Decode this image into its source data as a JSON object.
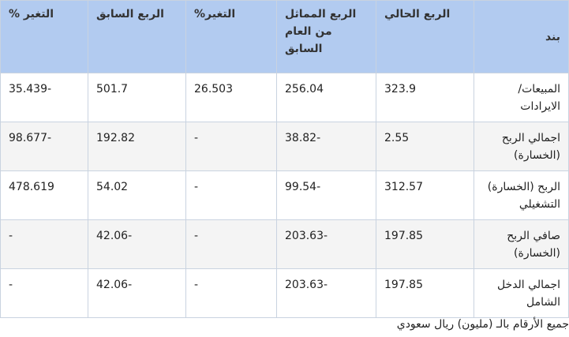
{
  "table": {
    "headers": {
      "item": "بند",
      "current_quarter": "الربع الحالي",
      "same_quarter_last_year": "الربع المماثل من العام السابق",
      "change_yoy": "التغير%",
      "previous_quarter": "الربع السابق",
      "change_qoq": "التغير %"
    },
    "rows": [
      {
        "item": "المبيعات/ الايرادات",
        "current": "323.9",
        "same_last_year": "256.04",
        "change_yoy": "26.503",
        "previous": "501.7",
        "change_qoq": "-35.439"
      },
      {
        "item": "اجمالي الربح (الخسارة)",
        "current": "2.55",
        "same_last_year": "-38.82",
        "change_yoy": "-",
        "previous": "192.82",
        "change_qoq": "-98.677"
      },
      {
        "item": "الربح (الخسارة) التشغيلي",
        "current": "312.57",
        "same_last_year": "-99.54",
        "change_yoy": "-",
        "previous": "54.02",
        "change_qoq": "478.619"
      },
      {
        "item": "صافي الربح (الخسارة)",
        "current": "197.85",
        "same_last_year": "-203.63",
        "change_yoy": "-",
        "previous": "-42.06",
        "change_qoq": "-"
      },
      {
        "item": "اجمالي الدخل الشامل",
        "current": "197.85",
        "same_last_year": "-203.63",
        "change_yoy": "-",
        "previous": "-42.06",
        "change_qoq": "-"
      }
    ]
  },
  "footnote": "جميع الأرقام بالـ (مليون) ريال سعودي",
  "colors": {
    "header_bg": "#b2cbf0",
    "positive": "#2eaa4a",
    "negative": "#e8413c"
  }
}
